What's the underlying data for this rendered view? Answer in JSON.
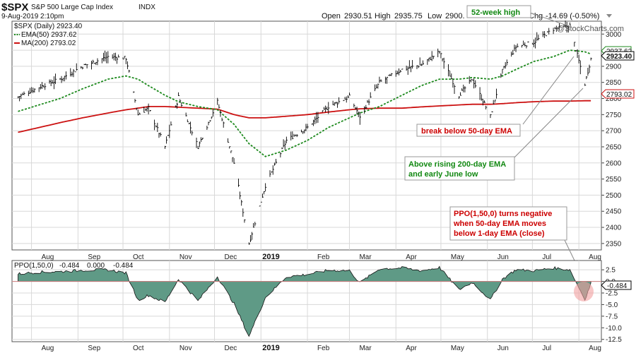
{
  "header": {
    "symbol": "$SPX",
    "name": "S&P 500 Large Cap Index",
    "exchange": "INDX",
    "datetime": "9-Aug-2019 2:10pm",
    "open_label": "Open",
    "open": "2930.51",
    "high_label": "High",
    "high": "2935.75",
    "low_label": "Low",
    "low": "2900.",
    "chg_label": "Chg",
    "chg": "-14.69 (-0.50%)",
    "watermark": "@StockCharts.com"
  },
  "legend": {
    "price": "$SPX (Daily) 2923.40",
    "ema": "EMA(50) 2937.62",
    "ma": "MA(200) 2793.02"
  },
  "colors": {
    "price": "#000000",
    "ema": "#1e8a1e",
    "ma": "#cc1111",
    "hist_fill": "#5f9a86",
    "hist_stroke": "#111111",
    "ppo_zero": "#d08080",
    "grid": "#d8d8d8",
    "ann_red": "#cc0000",
    "ann_green": "#118811",
    "ppo_neg": "#cc1111"
  },
  "price_tags": {
    "last": "2923.40",
    "ema": "2937.62",
    "ma": "2793.02"
  },
  "ppo_panel": {
    "label": "PPO(1,50,0)",
    "ppo": "-0.484",
    "signal": "0.000",
    "hist": "-0.484",
    "tag": "-0.484"
  },
  "annotations": {
    "high52": "52-week high",
    "break50": "break below 50-day EMA",
    "above200_1": "Above rising 200-day EMA",
    "above200_2": "and early June low",
    "ppo_1": "PPO(1,50,0) turns negative",
    "ppo_2": "when 50-day EMA moves",
    "ppo_3": "below 1-day EMA (close)"
  },
  "chart_data": [
    {
      "type": "line",
      "title": "$SPX (Daily)",
      "x_ticks": [
        "Aug",
        "Sep",
        "Oct",
        "Nov",
        "Dec",
        "2019",
        "Feb",
        "Mar",
        "Apr",
        "May",
        "Jun",
        "Jul",
        "Aug"
      ],
      "y_ticks": [
        2350,
        2400,
        2450,
        2500,
        2550,
        2600,
        2650,
        2700,
        2750,
        2800,
        2850,
        2900,
        2950,
        3000
      ],
      "ylim": [
        2330,
        3040
      ],
      "grid": true,
      "legend": "top-left",
      "x_dates": [
        "2018-07-23",
        "2018-08-06",
        "2018-08-20",
        "2018-09-04",
        "2018-09-21",
        "2018-10-03",
        "2018-10-11",
        "2018-10-18",
        "2018-10-29",
        "2018-11-07",
        "2018-11-20",
        "2018-12-03",
        "2018-12-14",
        "2018-12-24",
        "2019-01-04",
        "2019-01-18",
        "2019-02-01",
        "2019-02-15",
        "2019-03-01",
        "2019-03-08",
        "2019-03-21",
        "2019-04-05",
        "2019-04-18",
        "2019-04-30",
        "2019-05-13",
        "2019-05-22",
        "2019-06-03",
        "2019-06-11",
        "2019-06-20",
        "2019-07-02",
        "2019-07-15",
        "2019-07-26",
        "2019-08-05",
        "2019-08-09"
      ],
      "series": [
        {
          "name": "$SPX (Daily) 2923.40",
          "values": [
            2805,
            2835,
            2860,
            2900,
            2930,
            2925,
            2750,
            2770,
            2650,
            2805,
            2650,
            2790,
            2600,
            2350,
            2530,
            2670,
            2710,
            2775,
            2805,
            2745,
            2850,
            2890,
            2905,
            2945,
            2810,
            2860,
            2745,
            2885,
            2960,
            2975,
            3015,
            3025,
            2845,
            2923
          ]
        },
        {
          "name": "EMA(50) 2937.62",
          "values": [
            2760,
            2780,
            2800,
            2830,
            2860,
            2870,
            2860,
            2840,
            2810,
            2790,
            2775,
            2765,
            2720,
            2660,
            2620,
            2640,
            2670,
            2710,
            2740,
            2755,
            2775,
            2810,
            2840,
            2860,
            2860,
            2865,
            2860,
            2870,
            2890,
            2915,
            2930,
            2950,
            2945,
            2938
          ]
        },
        {
          "name": "MA(200) 2793.02",
          "values": [
            2695,
            2710,
            2725,
            2740,
            2755,
            2765,
            2770,
            2775,
            2775,
            2773,
            2770,
            2767,
            2750,
            2740,
            2740,
            2745,
            2750,
            2758,
            2765,
            2768,
            2770,
            2770,
            2774,
            2777,
            2780,
            2782,
            2782,
            2784,
            2787,
            2790,
            2792,
            2792,
            2793,
            2793
          ]
        }
      ]
    },
    {
      "type": "area",
      "title": "PPO(1,50,0)",
      "x_ticks": [
        "Aug",
        "Sep",
        "Oct",
        "Nov",
        "Dec",
        "2019",
        "Feb",
        "Mar",
        "Apr",
        "May",
        "Jun",
        "Jul",
        "Aug"
      ],
      "y_ticks": [
        -12.5,
        -10.0,
        -7.5,
        -5.0,
        -2.5,
        0.0,
        2.5
      ],
      "ylim": [
        -13,
        4.5
      ],
      "grid": true,
      "x_dates": [
        "2018-07-23",
        "2018-08-06",
        "2018-08-20",
        "2018-09-04",
        "2018-09-21",
        "2018-10-03",
        "2018-10-11",
        "2018-10-18",
        "2018-10-29",
        "2018-11-07",
        "2018-11-20",
        "2018-12-03",
        "2018-12-14",
        "2018-12-24",
        "2019-01-04",
        "2019-01-18",
        "2019-02-01",
        "2019-02-15",
        "2019-03-01",
        "2019-03-08",
        "2019-03-21",
        "2019-04-05",
        "2019-04-18",
        "2019-04-30",
        "2019-05-13",
        "2019-05-22",
        "2019-06-03",
        "2019-06-11",
        "2019-06-20",
        "2019-07-02",
        "2019-07-15",
        "2019-07-26",
        "2019-08-05",
        "2019-08-09"
      ],
      "series": [
        {
          "name": "PPO(1,50,0)",
          "values": [
            1.6,
            2.0,
            2.1,
            2.4,
            2.5,
            1.8,
            -4.0,
            -3.0,
            -4.5,
            0.5,
            -4.2,
            1.0,
            -4.8,
            -11.8,
            -3.5,
            1.0,
            1.5,
            2.4,
            2.3,
            -0.3,
            2.7,
            2.9,
            2.3,
            3.0,
            -1.8,
            -0.2,
            -4.0,
            0.5,
            2.5,
            2.3,
            2.9,
            2.5,
            -3.9,
            -0.484
          ]
        }
      ]
    }
  ]
}
